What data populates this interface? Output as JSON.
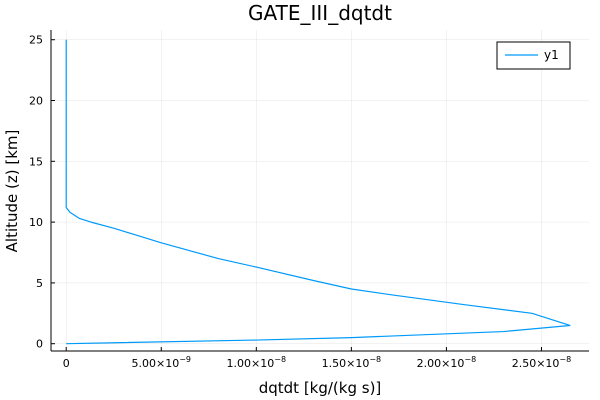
{
  "chart_data": {
    "type": "line",
    "title": "GATE_III_dqtdt",
    "xlabel": "dqtdt [kg/(kg s)]",
    "ylabel": "Altitude (z) [km]",
    "xlim": [
      -8e-10,
      2.75e-08
    ],
    "ylim": [
      -0.6,
      25.8
    ],
    "grid": true,
    "legend_position": "top-right",
    "x_ticks": [
      {
        "value": 0,
        "label": "0"
      },
      {
        "value": 5e-09,
        "label": "5.00×10",
        "exp": "−9"
      },
      {
        "value": 1e-08,
        "label": "1.00×10",
        "exp": "−8"
      },
      {
        "value": 1.5e-08,
        "label": "1.50×10",
        "exp": "−8"
      },
      {
        "value": 2e-08,
        "label": "2.00×10",
        "exp": "−8"
      },
      {
        "value": 2.5e-08,
        "label": "2.50×10",
        "exp": "−8"
      }
    ],
    "y_ticks": [
      {
        "value": 0,
        "label": "0"
      },
      {
        "value": 5,
        "label": "5"
      },
      {
        "value": 10,
        "label": "10"
      },
      {
        "value": 15,
        "label": "15"
      },
      {
        "value": 20,
        "label": "20"
      },
      {
        "value": 25,
        "label": "25"
      }
    ],
    "series": [
      {
        "name": "y1",
        "color": "#009AFA",
        "points": [
          [
            0,
            0
          ],
          [
            1e-08,
            0.3
          ],
          [
            1.5e-08,
            0.5
          ],
          [
            2.3e-08,
            1.0
          ],
          [
            2.65e-08,
            1.5
          ],
          [
            2.45e-08,
            2.5
          ],
          [
            2.1e-08,
            3.2
          ],
          [
            1.72e-08,
            4.0
          ],
          [
            1.5e-08,
            4.5
          ],
          [
            1.3e-08,
            5.2
          ],
          [
            1e-08,
            6.3
          ],
          [
            8e-09,
            7.0
          ],
          [
            5e-09,
            8.3
          ],
          [
            2.5e-09,
            9.5
          ],
          [
            1.3e-09,
            10.0
          ],
          [
            7e-10,
            10.3
          ],
          [
            2e-10,
            10.8
          ],
          [
            0,
            11.2
          ],
          [
            0,
            12.0
          ],
          [
            0,
            25.0
          ]
        ]
      }
    ]
  }
}
